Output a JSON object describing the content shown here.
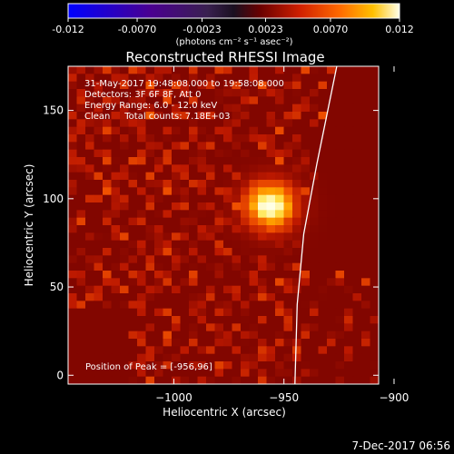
{
  "colorbar": {
    "ticks": [
      "-0.012",
      "-0.0070",
      "-0.0023",
      "0.0023",
      "0.0070",
      "0.012"
    ],
    "tick_values": [
      -0.012,
      -0.007,
      -0.0023,
      0.0023,
      0.007,
      0.012
    ],
    "range": [
      -0.012,
      0.012
    ],
    "unit_label": "(photons cm⁻² s⁻¹ asec⁻²)"
  },
  "chart_data": {
    "type": "heatmap",
    "title": "Reconstructed RHESSI Image",
    "xlabel": "Heliocentric X (arcsec)",
    "ylabel": "Heliocentric Y (arcsec)",
    "xlim": [
      -1048,
      -907
    ],
    "ylim": [
      -5,
      175
    ],
    "xticks": [
      -1000,
      -950,
      -900
    ],
    "xtick_labels": [
      "−1000",
      "−950",
      "−900"
    ],
    "yticks": [
      0,
      50,
      100,
      150
    ],
    "ytick_labels": [
      "0",
      "50",
      "100",
      "150"
    ],
    "grid": false,
    "colormap": "blue-purple-red-orange-yellow-white (RHESSI diverging)",
    "peak_source": {
      "x": -956,
      "y": 96,
      "label": "Position of Peak = [-956,96]"
    },
    "limb_curve": {
      "points": [
        [
          -945,
          -5
        ],
        [
          -944,
          40
        ],
        [
          -941,
          80
        ],
        [
          -935,
          120
        ],
        [
          -926,
          175
        ]
      ]
    },
    "annotations": [
      "31-May-2017 19:48:08.000 to 19:58:08.000",
      "Detectors: 3F 6F 8F, Att 0",
      "Energy Range: 6.0 - 12.0 keV",
      "Clean     Total counts: 7.18E+03"
    ],
    "grid_cells": {
      "nx": 36,
      "ny": 42
    }
  },
  "footer": {
    "timestamp": "7-Dec-2017 06:56"
  },
  "colors": {
    "background": "#000000",
    "text": "#ffffff",
    "limb": "#ffffff",
    "cmap_stops": [
      "#0000ff",
      "#3a0090",
      "#5a1a82",
      "#201020",
      "#6a0000",
      "#c02000",
      "#ff5000",
      "#ffb000",
      "#ffff80",
      "#ffffff"
    ]
  }
}
